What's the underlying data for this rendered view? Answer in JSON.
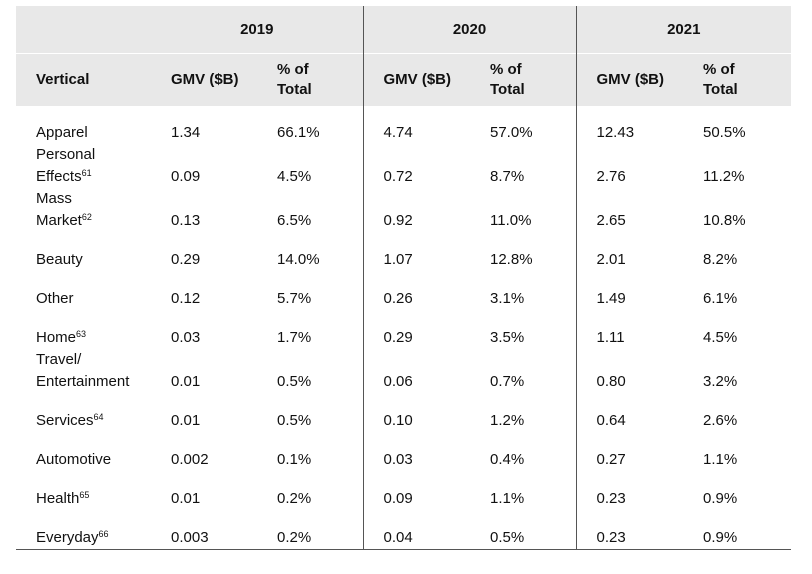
{
  "years": [
    "2019",
    "2020",
    "2021"
  ],
  "headers": {
    "vertical": "Vertical",
    "gmv": "GMV ($B)",
    "pct_line1": "% of",
    "pct_line2": "Total"
  },
  "rows": [
    {
      "line1": "Apparel",
      "line2": "",
      "sup": "",
      "v": [
        "1.34",
        "66.1%",
        "4.74",
        "57.0%",
        "12.43",
        "50.5%"
      ]
    },
    {
      "line1": "Personal",
      "line2": "Effects",
      "sup": "61",
      "v": [
        "0.09",
        "4.5%",
        "0.72",
        "8.7%",
        "2.76",
        "11.2%"
      ]
    },
    {
      "line1": "Mass",
      "line2": "Market",
      "sup": "62",
      "v": [
        "0.13",
        "6.5%",
        "0.92",
        "11.0%",
        "2.65",
        "10.8%"
      ]
    },
    {
      "line1": "Beauty",
      "line2": "",
      "sup": "",
      "v": [
        "0.29",
        "14.0%",
        "1.07",
        "12.8%",
        "2.01",
        "8.2%"
      ]
    },
    {
      "line1": "Other",
      "line2": "",
      "sup": "",
      "v": [
        "0.12",
        "5.7%",
        "0.26",
        "3.1%",
        "1.49",
        "6.1%"
      ]
    },
    {
      "line1": "Home",
      "line2": "",
      "sup": "63",
      "v": [
        "0.03",
        "1.7%",
        "0.29",
        "3.5%",
        "1.11",
        "4.5%"
      ]
    },
    {
      "line1": "Travel/",
      "line2": "Entertainment",
      "sup": "",
      "v": [
        "0.01",
        "0.5%",
        "0.06",
        "0.7%",
        "0.80",
        "3.2%"
      ]
    },
    {
      "line1": "Services",
      "line2": "",
      "sup": "64",
      "v": [
        "0.01",
        "0.5%",
        "0.10",
        "1.2%",
        "0.64",
        "2.6%"
      ]
    },
    {
      "line1": "Automotive",
      "line2": "",
      "sup": "",
      "v": [
        "0.002",
        "0.1%",
        "0.03",
        "0.4%",
        "0.27",
        "1.1%"
      ]
    },
    {
      "line1": "Health",
      "line2": "",
      "sup": "65",
      "v": [
        "0.01",
        "0.2%",
        "0.09",
        "1.1%",
        "0.23",
        "0.9%"
      ]
    },
    {
      "line1": "Everyday",
      "line2": "",
      "sup": "66",
      "v": [
        "0.003",
        "0.2%",
        "0.04",
        "0.5%",
        "0.23",
        "0.9%"
      ]
    }
  ],
  "colors": {
    "header_bg": "#e8e8e8",
    "rule": "#555555"
  }
}
